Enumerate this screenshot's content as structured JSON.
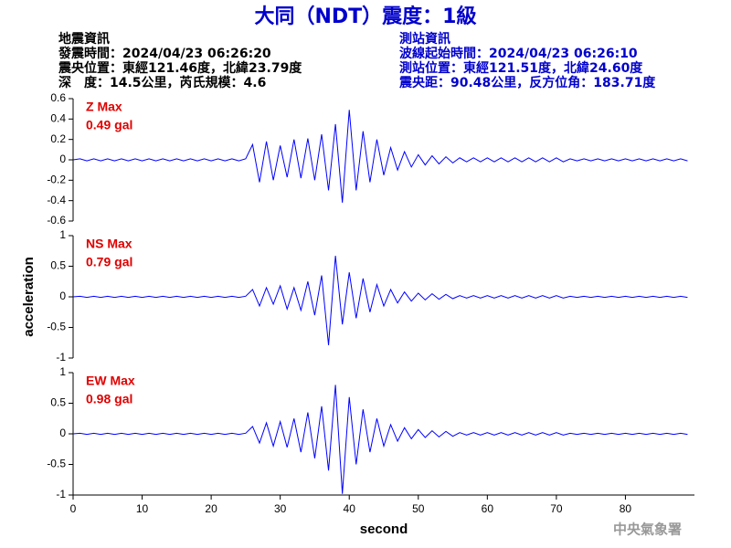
{
  "header": {
    "title": "大同（NDT）震度：1級",
    "left": [
      "地震資訊",
      "發震時間：2024/04/23 06:26:20",
      "震央位置：東經121.46度，北緯23.79度",
      "深　度：14.5公里，芮氏規模：4.6"
    ],
    "right": [
      "測站資訊",
      "波線起始時間：2024/04/23 06:26:10",
      "測站位置：東經121.51度，北緯24.60度",
      "震央距：90.48公里，反方位角：183.71度"
    ]
  },
  "footer": "中央氣象署",
  "chart_data": [
    {
      "type": "line",
      "component": "Z Max",
      "max_label": "0.49 gal",
      "color": "#0000ff",
      "xlim": [
        0,
        90
      ],
      "ylim": [
        -0.6,
        0.6
      ],
      "yticks": [
        0.6,
        0.4,
        0.2,
        0,
        -0.2,
        -0.4,
        -0.6
      ],
      "x": [
        0,
        1,
        2,
        3,
        4,
        5,
        6,
        7,
        8,
        9,
        10,
        11,
        12,
        13,
        14,
        15,
        16,
        17,
        18,
        19,
        20,
        21,
        22,
        23,
        24,
        25,
        26,
        27,
        28,
        29,
        30,
        31,
        32,
        33,
        34,
        35,
        36,
        37,
        38,
        39,
        40,
        41,
        42,
        43,
        44,
        45,
        46,
        47,
        48,
        49,
        50,
        51,
        52,
        53,
        54,
        55,
        56,
        57,
        58,
        59,
        60,
        61,
        62,
        63,
        64,
        65,
        66,
        67,
        68,
        69,
        70,
        71,
        72,
        73,
        74,
        75,
        76,
        77,
        78,
        79,
        80,
        81,
        82,
        83,
        84,
        85,
        86,
        87,
        88,
        89
      ],
      "values": [
        0,
        0.01,
        -0.01,
        0.01,
        -0.01,
        0.01,
        -0.01,
        0.01,
        -0.01,
        0.01,
        -0.01,
        0.01,
        -0.01,
        0.01,
        -0.01,
        0.01,
        -0.01,
        0.01,
        -0.01,
        0.01,
        -0.01,
        0.01,
        -0.01,
        0.01,
        -0.01,
        0.01,
        0.15,
        -0.22,
        0.18,
        -0.2,
        0.14,
        -0.17,
        0.2,
        -0.18,
        0.21,
        -0.2,
        0.25,
        -0.3,
        0.35,
        -0.42,
        0.49,
        -0.3,
        0.28,
        -0.22,
        0.2,
        -0.15,
        0.12,
        -0.1,
        0.08,
        -0.07,
        0.05,
        -0.05,
        0.04,
        -0.04,
        0.03,
        -0.03,
        0.02,
        -0.02,
        0.02,
        -0.02,
        0.02,
        -0.02,
        0.02,
        -0.02,
        0.02,
        -0.02,
        0.02,
        -0.02,
        0.02,
        -0.02,
        0.02,
        -0.02,
        0.01,
        -0.01,
        0.01,
        -0.01,
        0.01,
        -0.01,
        0.01,
        -0.01,
        0.01,
        -0.01,
        0.01,
        -0.01,
        0.01,
        -0.01,
        0.01,
        -0.01,
        0.01,
        -0.01
      ]
    },
    {
      "type": "line",
      "component": "NS Max",
      "max_label": "0.79 gal",
      "color": "#0000ff",
      "ylabel": "acceleration",
      "xlim": [
        0,
        90
      ],
      "ylim": [
        -1,
        1
      ],
      "yticks": [
        1,
        0.5,
        0,
        -0.5,
        -1
      ],
      "x": [
        0,
        1,
        2,
        3,
        4,
        5,
        6,
        7,
        8,
        9,
        10,
        11,
        12,
        13,
        14,
        15,
        16,
        17,
        18,
        19,
        20,
        21,
        22,
        23,
        24,
        25,
        26,
        27,
        28,
        29,
        30,
        31,
        32,
        33,
        34,
        35,
        36,
        37,
        38,
        39,
        40,
        41,
        42,
        43,
        44,
        45,
        46,
        47,
        48,
        49,
        50,
        51,
        52,
        53,
        54,
        55,
        56,
        57,
        58,
        59,
        60,
        61,
        62,
        63,
        64,
        65,
        66,
        67,
        68,
        69,
        70,
        71,
        72,
        73,
        74,
        75,
        76,
        77,
        78,
        79,
        80,
        81,
        82,
        83,
        84,
        85,
        86,
        87,
        88,
        89
      ],
      "values": [
        0,
        0.01,
        -0.01,
        0.01,
        -0.01,
        0.01,
        -0.01,
        0.01,
        -0.01,
        0.01,
        -0.01,
        0.01,
        -0.01,
        0.01,
        -0.01,
        0.01,
        -0.01,
        0.01,
        -0.01,
        0.01,
        -0.01,
        0.01,
        -0.01,
        0.01,
        -0.01,
        0.01,
        0.12,
        -0.15,
        0.15,
        -0.12,
        0.18,
        -0.2,
        0.15,
        -0.22,
        0.25,
        -0.3,
        0.35,
        -0.79,
        0.67,
        -0.45,
        0.4,
        -0.35,
        0.3,
        -0.25,
        0.2,
        -0.15,
        0.12,
        -0.1,
        0.08,
        -0.07,
        0.06,
        -0.05,
        0.05,
        -0.04,
        0.04,
        -0.03,
        0.02,
        -0.02,
        0.02,
        -0.02,
        0.02,
        -0.02,
        0.02,
        -0.02,
        0.02,
        -0.02,
        0.02,
        -0.02,
        0.02,
        -0.02,
        0.02,
        -0.02,
        0.01,
        -0.01,
        0.01,
        -0.01,
        0.01,
        -0.01,
        0.01,
        -0.01,
        0.01,
        -0.01,
        0.01,
        -0.01,
        0.01,
        -0.01,
        0.01,
        -0.01,
        0.01,
        -0.01
      ]
    },
    {
      "type": "line",
      "component": "EW Max",
      "max_label": "0.98 gal",
      "color": "#0000ff",
      "xlabel": "second",
      "xlim": [
        0,
        90
      ],
      "xticks": [
        0,
        10,
        20,
        30,
        40,
        50,
        60,
        70,
        80
      ],
      "ylim": [
        -1,
        1
      ],
      "yticks": [
        1,
        0.5,
        0,
        -0.5,
        -1
      ],
      "x": [
        0,
        1,
        2,
        3,
        4,
        5,
        6,
        7,
        8,
        9,
        10,
        11,
        12,
        13,
        14,
        15,
        16,
        17,
        18,
        19,
        20,
        21,
        22,
        23,
        24,
        25,
        26,
        27,
        28,
        29,
        30,
        31,
        32,
        33,
        34,
        35,
        36,
        37,
        38,
        39,
        40,
        41,
        42,
        43,
        44,
        45,
        46,
        47,
        48,
        49,
        50,
        51,
        52,
        53,
        54,
        55,
        56,
        57,
        58,
        59,
        60,
        61,
        62,
        63,
        64,
        65,
        66,
        67,
        68,
        69,
        70,
        71,
        72,
        73,
        74,
        75,
        76,
        77,
        78,
        79,
        80,
        81,
        82,
        83,
        84,
        85,
        86,
        87,
        88,
        89
      ],
      "values": [
        0,
        0.01,
        -0.01,
        0.01,
        -0.01,
        0.01,
        -0.01,
        0.01,
        -0.01,
        0.01,
        -0.01,
        0.01,
        -0.01,
        0.01,
        -0.01,
        0.01,
        -0.01,
        0.01,
        -0.01,
        0.01,
        -0.01,
        0.01,
        -0.01,
        0.01,
        -0.01,
        0.01,
        0.12,
        -0.15,
        0.18,
        -0.2,
        0.2,
        -0.22,
        0.25,
        -0.3,
        0.35,
        -0.4,
        0.45,
        -0.6,
        0.8,
        -0.98,
        0.6,
        -0.5,
        0.4,
        -0.3,
        0.25,
        -0.2,
        0.15,
        -0.12,
        0.1,
        -0.08,
        0.07,
        -0.06,
        0.05,
        -0.05,
        0.04,
        -0.04,
        0.02,
        -0.02,
        0.02,
        -0.02,
        0.02,
        -0.02,
        0.02,
        -0.02,
        0.02,
        -0.02,
        0.02,
        -0.02,
        0.02,
        -0.02,
        0.02,
        -0.02,
        0.01,
        -0.01,
        0.01,
        -0.01,
        0.01,
        -0.01,
        0.01,
        -0.01,
        0.01,
        -0.01,
        0.01,
        -0.01,
        0.01,
        -0.01,
        0.01,
        -0.01,
        0.01,
        -0.01
      ]
    }
  ]
}
